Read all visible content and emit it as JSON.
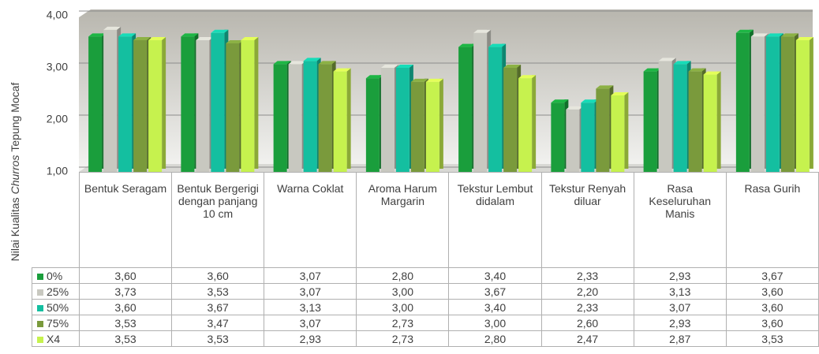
{
  "chart_data": {
    "type": "bar",
    "y_label": [
      "Nilai Kualitas",
      "Churros",
      "Tepung Mocaf"
    ],
    "categories": [
      "Bentuk Seragam",
      "Bentuk Bergerigi dengan panjang 10 cm",
      "Warna Coklat",
      "Aroma Harum Margarin",
      "Tekstur Lembut didalam",
      "Tekstur Renyah diluar",
      "Rasa Keseluruhan Manis",
      "Rasa Gurih"
    ],
    "ylim": [
      1,
      4
    ],
    "yticks": [
      {
        "value": 1,
        "label": "1,00"
      },
      {
        "value": 2,
        "label": "2,00"
      },
      {
        "value": 3,
        "label": "3,00"
      },
      {
        "value": 4,
        "label": "4,00"
      }
    ],
    "grid": true,
    "series": [
      {
        "name": "0%",
        "color": "#1a9e3c",
        "values": [
          3.6,
          3.6,
          3.07,
          2.8,
          3.4,
          2.33,
          2.93,
          3.67
        ],
        "value_labels": [
          "3,60",
          "3,60",
          "3,07",
          "2,80",
          "3,40",
          "2,33",
          "2,93",
          "3,67"
        ]
      },
      {
        "name": "25%",
        "color": "#c8c8c0",
        "values": [
          3.73,
          3.53,
          3.07,
          3.0,
          3.67,
          2.2,
          3.13,
          3.6
        ],
        "value_labels": [
          "3,73",
          "3,53",
          "3,07",
          "3,00",
          "3,67",
          "2,20",
          "3,13",
          "3,60"
        ]
      },
      {
        "name": "50%",
        "color": "#14bfa0",
        "values": [
          3.6,
          3.67,
          3.13,
          3.0,
          3.4,
          2.33,
          3.07,
          3.6
        ],
        "value_labels": [
          "3,60",
          "3,67",
          "3,13",
          "3,00",
          "3,40",
          "2,33",
          "3,07",
          "3,60"
        ]
      },
      {
        "name": "75%",
        "color": "#7a9a3c",
        "values": [
          3.53,
          3.47,
          3.07,
          2.73,
          3.0,
          2.6,
          2.93,
          3.6
        ],
        "value_labels": [
          "3,53",
          "3,47",
          "3,07",
          "2,73",
          "3,00",
          "2,60",
          "2,93",
          "3,60"
        ]
      },
      {
        "name": "X4",
        "color": "#c6f24e",
        "values": [
          3.53,
          3.53,
          2.93,
          2.73,
          2.8,
          2.47,
          2.87,
          3.53
        ],
        "value_labels": [
          "3,53",
          "3,53",
          "2,93",
          "2,73",
          "2,80",
          "2,47",
          "2,87",
          "3,53"
        ]
      }
    ]
  }
}
